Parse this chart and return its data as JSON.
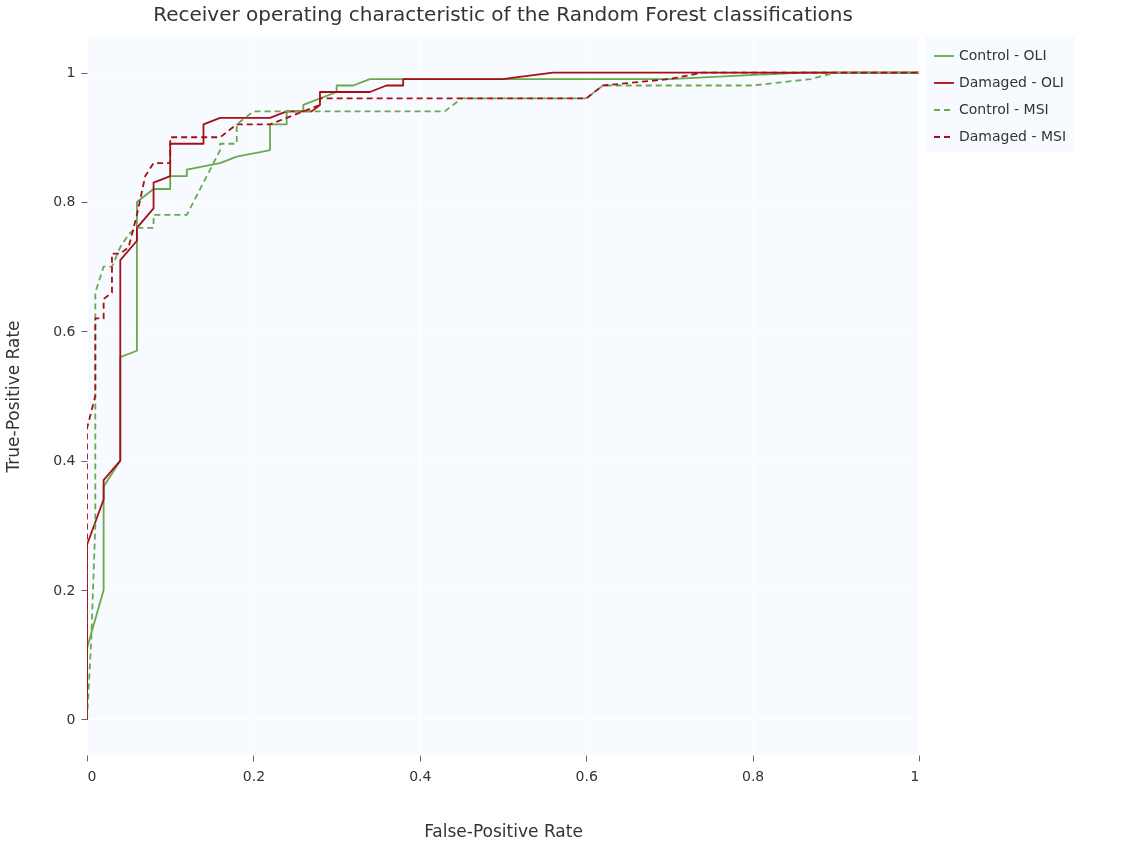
{
  "chart_data": {
    "type": "line",
    "title": "Receiver operating characteristic of the Random Forest classifications",
    "xlabel": "False-Positive Rate",
    "ylabel": "True-Positive Rate",
    "xlim": [
      0,
      1
    ],
    "ylim": [
      -0.055,
      1.055
    ],
    "xticks": [
      0,
      0.2,
      0.4,
      0.6,
      0.8,
      1
    ],
    "yticks": [
      0,
      0.2,
      0.4,
      0.6,
      0.8,
      1
    ],
    "grid": true,
    "legend": "right",
    "marker": "none",
    "series": [
      {
        "name": "Control - OLI",
        "color": "#6aa84f",
        "line_style": "solid",
        "x": [
          0,
          0,
          0.02,
          0.02,
          0.04,
          0.04,
          0.06,
          0.06,
          0.08,
          0.1,
          0.1,
          0.12,
          0.12,
          0.16,
          0.18,
          0.22,
          0.22,
          0.24,
          0.24,
          0.26,
          0.26,
          0.3,
          0.3,
          0.32,
          0.34,
          0.5,
          0.7,
          0.86,
          1
        ],
        "values": [
          0,
          0.11,
          0.2,
          0.36,
          0.4,
          0.56,
          0.57,
          0.8,
          0.82,
          0.82,
          0.84,
          0.84,
          0.85,
          0.86,
          0.87,
          0.88,
          0.92,
          0.92,
          0.94,
          0.94,
          0.95,
          0.97,
          0.98,
          0.98,
          0.99,
          0.99,
          0.99,
          1,
          1
        ]
      },
      {
        "name": "Damaged - OLI",
        "color": "#a50f15",
        "line_style": "solid",
        "x": [
          0,
          0,
          0.02,
          0.02,
          0.04,
          0.04,
          0.06,
          0.06,
          0.08,
          0.08,
          0.1,
          0.1,
          0.14,
          0.14,
          0.16,
          0.22,
          0.24,
          0.27,
          0.28,
          0.28,
          0.34,
          0.36,
          0.38,
          0.38,
          0.5,
          0.56,
          1
        ],
        "values": [
          0,
          0.27,
          0.34,
          0.37,
          0.4,
          0.71,
          0.74,
          0.76,
          0.79,
          0.83,
          0.84,
          0.89,
          0.89,
          0.92,
          0.93,
          0.93,
          0.94,
          0.94,
          0.95,
          0.97,
          0.97,
          0.98,
          0.98,
          0.99,
          0.99,
          1,
          1
        ]
      },
      {
        "name": "Control - MSI",
        "color": "#6aa84f",
        "line_style": "dashed",
        "x": [
          0,
          0.005,
          0.01,
          0.01,
          0.02,
          0.03,
          0.04,
          0.05,
          0.06,
          0.08,
          0.08,
          0.12,
          0.14,
          0.16,
          0.16,
          0.18,
          0.18,
          0.2,
          0.28,
          0.43,
          0.45,
          0.6,
          0.62,
          0.8,
          0.87,
          0.9,
          1
        ],
        "values": [
          0,
          0.12,
          0.3,
          0.66,
          0.7,
          0.7,
          0.73,
          0.75,
          0.76,
          0.76,
          0.78,
          0.78,
          0.83,
          0.88,
          0.89,
          0.89,
          0.92,
          0.94,
          0.94,
          0.94,
          0.96,
          0.96,
          0.98,
          0.98,
          0.99,
          1,
          1
        ]
      },
      {
        "name": "Damaged - MSI",
        "color": "#a50f15",
        "line_style": "dashed",
        "x": [
          0,
          0,
          0.01,
          0.01,
          0.02,
          0.02,
          0.03,
          0.03,
          0.04,
          0.05,
          0.06,
          0.07,
          0.08,
          0.1,
          0.1,
          0.16,
          0.18,
          0.22,
          0.24,
          0.28,
          0.28,
          0.6,
          0.62,
          0.7,
          0.74,
          1
        ],
        "values": [
          0,
          0.45,
          0.5,
          0.62,
          0.62,
          0.65,
          0.66,
          0.72,
          0.72,
          0.73,
          0.78,
          0.84,
          0.86,
          0.86,
          0.9,
          0.9,
          0.92,
          0.92,
          0.93,
          0.95,
          0.96,
          0.96,
          0.98,
          0.99,
          1,
          1
        ]
      }
    ]
  }
}
